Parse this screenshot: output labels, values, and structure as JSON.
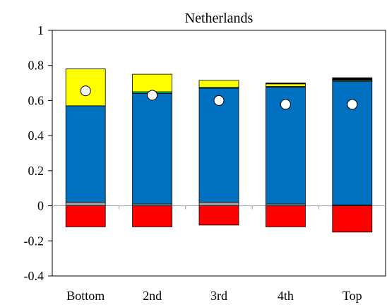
{
  "chart_data": {
    "type": "bar",
    "title": "Netherlands",
    "xlabel": "",
    "ylabel": "",
    "ylim": [
      -0.4,
      1
    ],
    "yticks": [
      "1",
      "0.8",
      "0.6",
      "0.4",
      "0.2",
      "0",
      "-0.2",
      "-0.4"
    ],
    "ytick_values": [
      1,
      0.8,
      0.6,
      0.4,
      0.2,
      0,
      -0.2,
      -0.4
    ],
    "categories": [
      "Bottom",
      "2nd",
      "3rd",
      "4th",
      "Top"
    ],
    "stacked": true,
    "grid": false,
    "legend": "none",
    "series": [
      {
        "color": "#ff0000",
        "values": [
          -0.12,
          -0.12,
          -0.11,
          -0.12,
          -0.15
        ]
      },
      {
        "color": "#a0a0a0",
        "values": [
          0.02,
          0.01,
          0.02,
          0.01,
          0.005
        ]
      },
      {
        "color": "#0070c0",
        "values": [
          0.55,
          0.63,
          0.65,
          0.665,
          0.705
        ]
      },
      {
        "color": "#00b050",
        "values": [
          0.0,
          0.01,
          0.005,
          0.005,
          0.0
        ]
      },
      {
        "color": "#ffff00",
        "values": [
          0.21,
          0.1,
          0.04,
          0.015,
          0.005
        ]
      },
      {
        "color": "#000000",
        "values": [
          0.0,
          0.0,
          0.0,
          0.005,
          0.015
        ]
      }
    ],
    "markers": {
      "shape": "circle",
      "fill": "#ffffff",
      "values": [
        0.655,
        0.63,
        0.6,
        0.578,
        0.578
      ]
    }
  }
}
